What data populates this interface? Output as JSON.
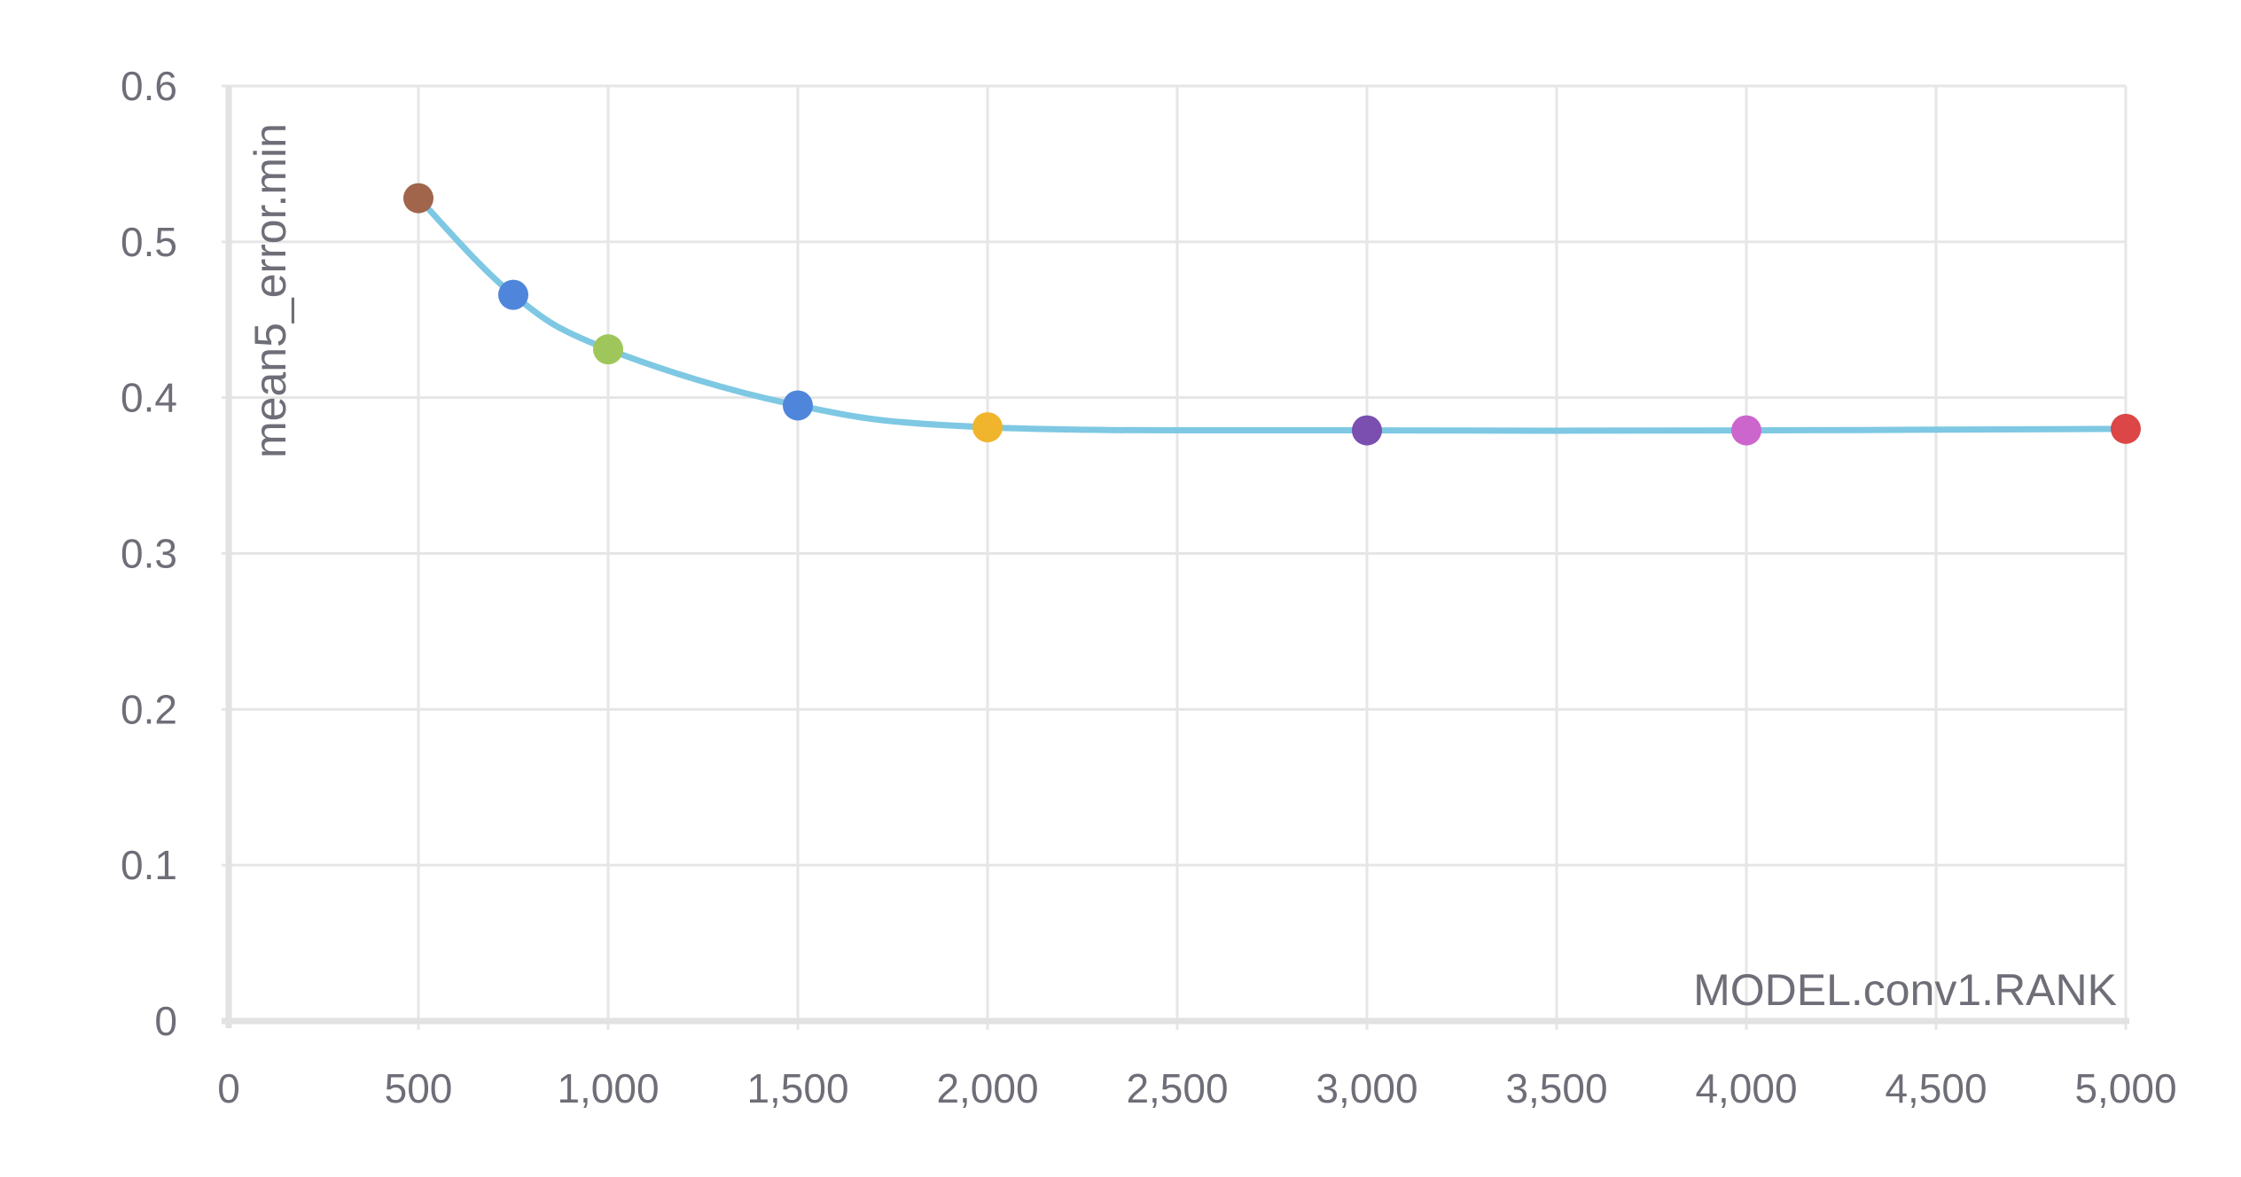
{
  "chart_data": {
    "type": "line",
    "title": "",
    "xlabel": "MODEL.conv1.RANK",
    "ylabel": "mean5_error.min",
    "xlim": [
      0,
      5000
    ],
    "ylim": [
      0,
      0.6
    ],
    "grid": true,
    "x_ticks": [
      "0",
      "500",
      "1,000",
      "1,500",
      "2,000",
      "2,500",
      "3,000",
      "3,500",
      "4,000",
      "4,500",
      "5,000"
    ],
    "y_ticks": [
      "0",
      "0.1",
      "0.2",
      "0.3",
      "0.4",
      "0.5",
      "0.6"
    ],
    "x_tick_values": [
      0,
      500,
      1000,
      1500,
      2000,
      2500,
      3000,
      3500,
      4000,
      4500,
      5000
    ],
    "y_tick_values": [
      0,
      0.1,
      0.2,
      0.3,
      0.4,
      0.5,
      0.6
    ],
    "series": [
      {
        "line_color": "#7ec8e3",
        "points": [
          {
            "x": 500,
            "y": 0.528,
            "color": "#a0654a"
          },
          {
            "x": 750,
            "y": 0.466,
            "color": "#4f86db"
          },
          {
            "x": 1000,
            "y": 0.431,
            "color": "#9fc65a"
          },
          {
            "x": 1500,
            "y": 0.395,
            "color": "#4f86db"
          },
          {
            "x": 2000,
            "y": 0.381,
            "color": "#f0b52c"
          },
          {
            "x": 3000,
            "y": 0.379,
            "color": "#7a4fb0"
          },
          {
            "x": 4000,
            "y": 0.379,
            "color": "#cc66cc"
          },
          {
            "x": 5000,
            "y": 0.38,
            "color": "#dc4646"
          }
        ]
      }
    ]
  }
}
